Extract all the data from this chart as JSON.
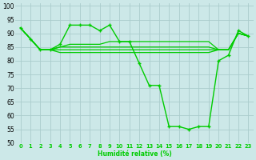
{
  "xlabel": "Humidité relative (%)",
  "bg_color": "#cce8e8",
  "grid_color": "#aacccc",
  "line_color": "#00cc00",
  "xlim": [
    -0.5,
    23.5
  ],
  "ylim": [
    50,
    101
  ],
  "yticks": [
    50,
    55,
    60,
    65,
    70,
    75,
    80,
    85,
    90,
    95,
    100
  ],
  "xticks": [
    0,
    1,
    2,
    3,
    4,
    5,
    6,
    7,
    8,
    9,
    10,
    11,
    12,
    13,
    14,
    15,
    16,
    17,
    18,
    19,
    20,
    21,
    22,
    23
  ],
  "main_line": {
    "x": [
      0,
      1,
      2,
      3,
      4,
      5,
      6,
      7,
      8,
      9,
      10,
      11,
      12,
      13,
      14,
      15,
      16,
      17,
      18,
      19,
      20,
      21,
      22,
      23
    ],
    "y": [
      92,
      88,
      84,
      84,
      86,
      93,
      93,
      93,
      91,
      93,
      87,
      87,
      79,
      71,
      71,
      56,
      56,
      55,
      56,
      56,
      80,
      82,
      91,
      89
    ]
  },
  "flat_lines": [
    [
      92,
      88,
      84,
      84,
      85,
      86,
      86,
      86,
      86,
      87,
      87,
      87,
      87,
      87,
      87,
      87,
      87,
      87,
      87,
      87,
      84,
      84,
      90,
      89
    ],
    [
      92,
      88,
      84,
      84,
      85,
      85,
      85,
      85,
      85,
      85,
      85,
      85,
      85,
      85,
      85,
      85,
      85,
      85,
      85,
      85,
      84,
      84,
      90,
      89
    ],
    [
      92,
      88,
      84,
      84,
      84,
      84,
      84,
      84,
      84,
      84,
      84,
      84,
      84,
      84,
      84,
      84,
      84,
      84,
      84,
      84,
      84,
      84,
      90,
      89
    ],
    [
      92,
      88,
      84,
      84,
      83,
      83,
      83,
      83,
      83,
      83,
      83,
      83,
      83,
      83,
      83,
      83,
      83,
      83,
      83,
      83,
      84,
      84,
      90,
      89
    ]
  ]
}
